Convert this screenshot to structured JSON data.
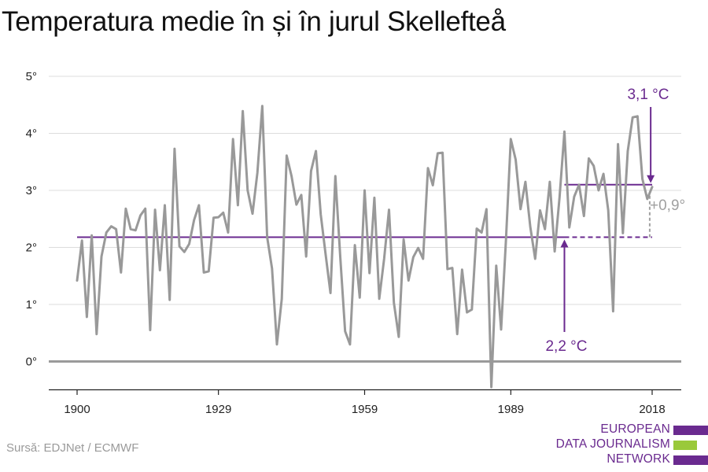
{
  "chart_data": {
    "type": "line",
    "title": "Temperatura medie în și în jurul Skellefteå",
    "xlim": [
      1900,
      2018
    ],
    "ylim": [
      -0.5,
      5
    ],
    "yticks": [
      0,
      1,
      2,
      3,
      4,
      5
    ],
    "ytick_labels": [
      "0°",
      "1°",
      "2°",
      "3°",
      "4°",
      "5°"
    ],
    "xticks": [
      1900,
      1929,
      1959,
      1989,
      2018
    ],
    "xtick_labels": [
      "1900",
      "1929",
      "1959",
      "1989",
      "2018"
    ],
    "grid": true,
    "series": [
      {
        "color": "#999999",
        "x": [
          1900,
          1901,
          1902,
          1903,
          1904,
          1905,
          1906,
          1907,
          1908,
          1909,
          1910,
          1911,
          1912,
          1913,
          1914,
          1915,
          1916,
          1917,
          1918,
          1919,
          1920,
          1921,
          1922,
          1923,
          1924,
          1925,
          1926,
          1927,
          1928,
          1929,
          1930,
          1931,
          1932,
          1933,
          1934,
          1935,
          1936,
          1937,
          1938,
          1939,
          1940,
          1941,
          1942,
          1943,
          1944,
          1945,
          1946,
          1947,
          1948,
          1949,
          1950,
          1951,
          1952,
          1953,
          1954,
          1955,
          1956,
          1957,
          1958,
          1959,
          1960,
          1961,
          1962,
          1963,
          1964,
          1965,
          1966,
          1967,
          1968,
          1969,
          1970,
          1971,
          1972,
          1973,
          1974,
          1975,
          1976,
          1977,
          1978,
          1979,
          1980,
          1981,
          1982,
          1983,
          1984,
          1985,
          1986,
          1987,
          1988,
          1989,
          1990,
          1991,
          1992,
          1993,
          1994,
          1995,
          1996,
          1997,
          1998,
          1999,
          2000,
          2001,
          2002,
          2003,
          2004,
          2005,
          2006,
          2007,
          2008,
          2009,
          2010,
          2011,
          2012,
          2013,
          2014,
          2015,
          2016,
          2017,
          2018
        ],
        "y": [
          1.42,
          2.12,
          0.78,
          2.21,
          0.48,
          1.84,
          2.26,
          2.37,
          2.32,
          1.56,
          2.68,
          2.32,
          2.3,
          2.56,
          2.68,
          0.55,
          2.66,
          1.6,
          2.74,
          1.08,
          3.73,
          2.02,
          1.92,
          2.06,
          2.48,
          2.74,
          1.56,
          1.58,
          2.52,
          2.53,
          2.61,
          2.26,
          3.9,
          2.74,
          4.39,
          3.0,
          2.59,
          3.31,
          4.48,
          2.18,
          1.63,
          0.3,
          1.1,
          3.61,
          3.25,
          2.75,
          2.92,
          1.84,
          3.34,
          3.69,
          2.58,
          1.88,
          1.2,
          3.25,
          1.84,
          0.53,
          0.3,
          2.04,
          1.12,
          3.0,
          1.55,
          2.87,
          1.1,
          1.8,
          2.66,
          1.03,
          0.43,
          2.14,
          1.42,
          1.83,
          1.99,
          1.8,
          3.39,
          3.09,
          3.65,
          3.66,
          1.62,
          1.64,
          0.48,
          1.61,
          0.86,
          0.91,
          2.33,
          2.26,
          2.67,
          -0.45,
          1.68,
          0.56,
          2.14,
          3.9,
          3.54,
          2.67,
          3.15,
          2.36,
          1.8,
          2.65,
          2.32,
          3.15,
          1.93,
          2.88,
          4.03,
          2.35,
          2.89,
          3.1,
          2.55,
          3.56,
          3.43,
          3.0,
          3.29,
          2.65,
          0.88,
          3.81,
          2.25,
          3.69,
          4.28,
          4.3,
          3.2,
          2.85,
          3.06
        ]
      }
    ],
    "reference_lines": [
      {
        "label": "2,2 °C",
        "value": 2.18,
        "color": "#6a2a8f"
      },
      {
        "label": "3,1 °C",
        "value": 3.1,
        "color": "#6a2a8f"
      }
    ],
    "annotations": [
      {
        "text": "3,1 °C",
        "color": "#6a2a8f"
      },
      {
        "text": "2,2 °C",
        "color": "#6a2a8f"
      },
      {
        "text": "+0,9°",
        "color": "#a0a0a0"
      }
    ]
  },
  "source": "Sursă: EDJNet / ECMWF",
  "logo": {
    "lines": [
      "EUROPEAN",
      "DATA JOURNALISM",
      "NETWORK"
    ],
    "colors": [
      "#6a2a8f",
      "#9ac93a",
      "#6a2a8f"
    ]
  }
}
